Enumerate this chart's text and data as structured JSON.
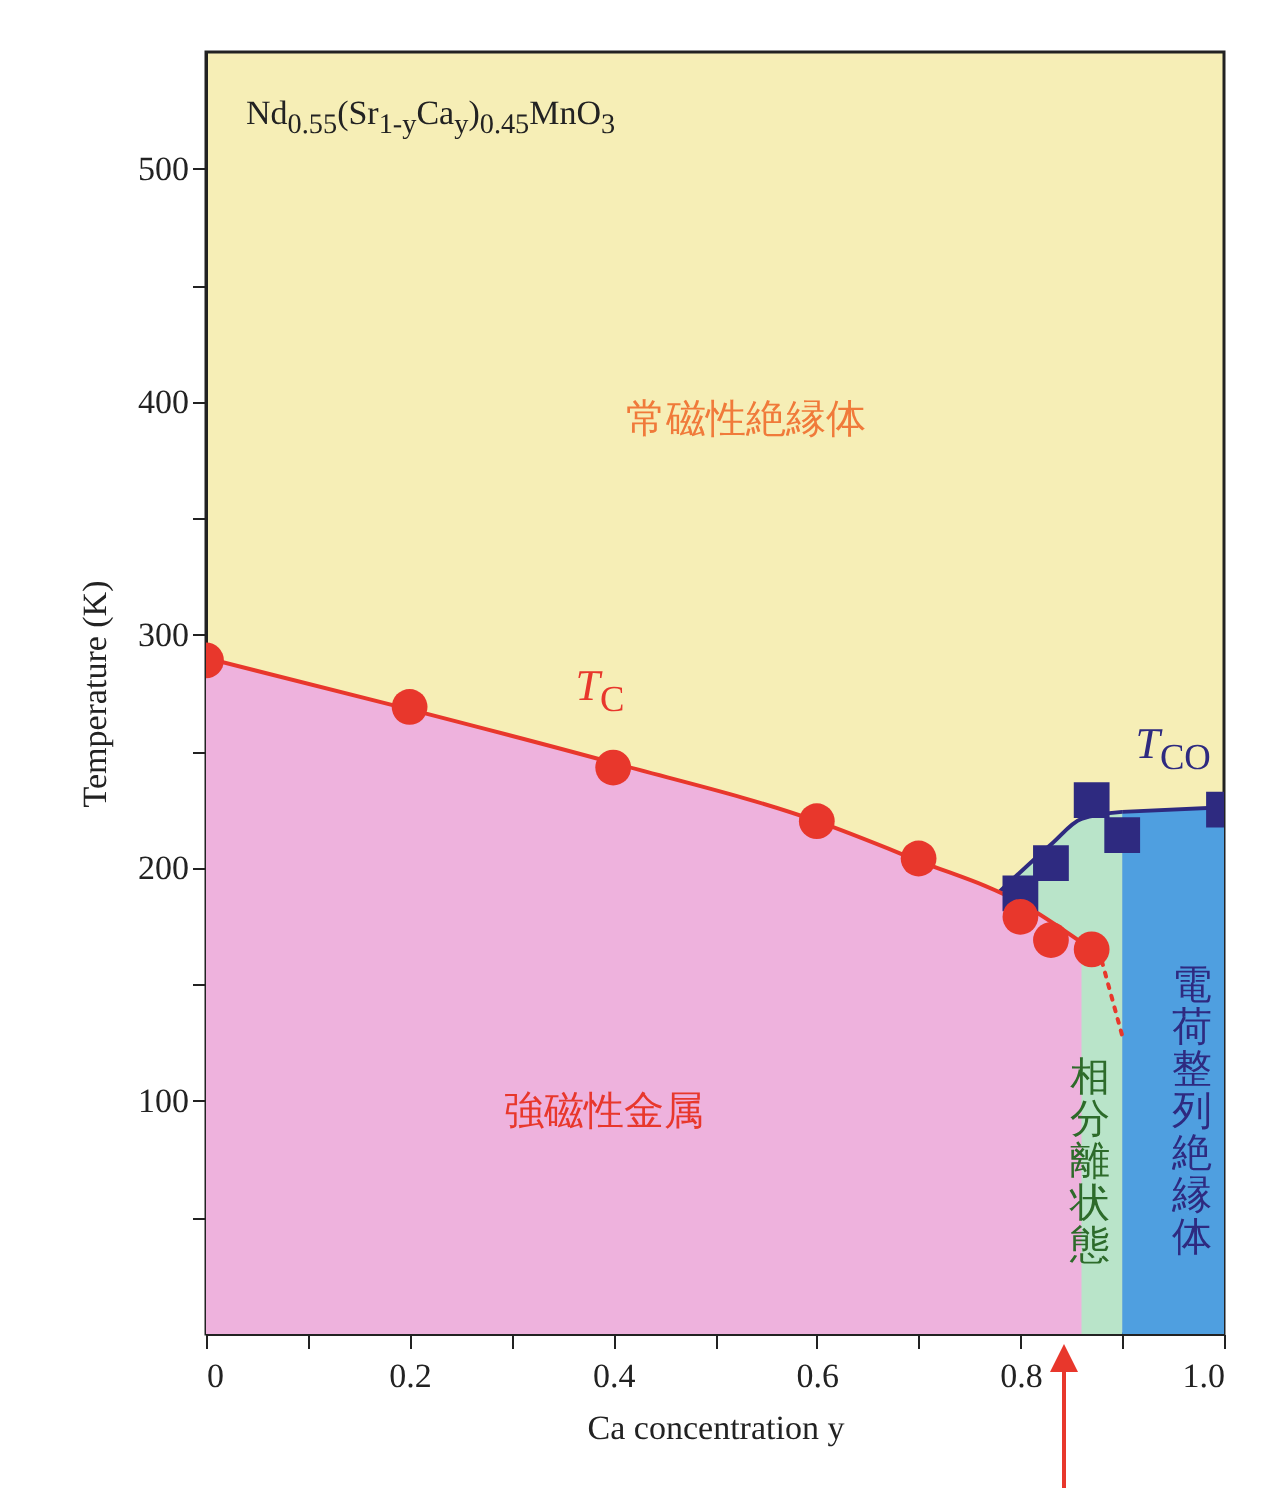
{
  "chart_data": {
    "type": "scatter",
    "xlabel": "Ca concentration y",
    "ylabel": "Temperature (K)",
    "xlim": [
      0,
      1.0
    ],
    "ylim": [
      0,
      550
    ],
    "xticks": [
      0,
      {
        "value": 0.1,
        "label": null
      },
      0.2,
      {
        "value": 0.3,
        "label": null
      },
      0.4,
      {
        "value": 0.5,
        "label": null
      },
      0.6,
      {
        "value": 0.7,
        "label": null
      },
      0.8,
      {
        "value": 0.9,
        "label": null
      },
      {
        "value": 1.0,
        "label": "1.0"
      }
    ],
    "yticks": [
      {
        "value": 50,
        "label": null
      },
      100,
      {
        "value": 150,
        "label": null
      },
      200,
      {
        "value": 250,
        "label": null
      },
      300,
      {
        "value": 350,
        "label": null
      },
      400,
      {
        "value": 450,
        "label": null
      },
      500
    ],
    "grid": false,
    "series": [
      {
        "type": "area",
        "color": "#b9e4c9",
        "x": [
          0.78,
          0.83,
          0.86,
          0.9
        ],
        "values": [
          190,
          210,
          221,
          224
        ]
      },
      {
        "type": "area",
        "color": "#4f9fe0",
        "x": [
          0.9,
          1.0
        ],
        "values": [
          224,
          226
        ]
      },
      {
        "type": "area",
        "color": "#eeb2dd",
        "x": [
          0,
          0.2,
          0.4,
          0.6,
          0.7,
          0.8,
          0.86
        ],
        "values": [
          290,
          268,
          245,
          220,
          203,
          185,
          168
        ]
      },
      {
        "type": "line",
        "color": "#e8372c",
        "marker": "none",
        "line_style": "dotted",
        "x": [
          0.88,
          0.9
        ],
        "values": [
          160,
          128
        ]
      },
      {
        "color": "#2e2a80",
        "marker": "square",
        "x": [
          0.8,
          0.83,
          0.87,
          0.9,
          1.0
        ],
        "values": [
          189,
          202,
          229,
          214,
          225
        ]
      },
      {
        "color": "#e8372c",
        "marker": "circle",
        "x": [
          0,
          0.2,
          0.4,
          0.6,
          0.7,
          0.8,
          0.83,
          0.87
        ],
        "values": [
          289,
          269,
          243,
          220,
          204,
          179,
          169,
          165
        ]
      }
    ],
    "annotations": [
      "Nd$_{0.55}$(Sr$_{1-y}$Ca$_{y}$)$_{0.45}$MnO$_{3}$",
      "常磁性絶縁体",
      "強磁性金属",
      "T$_{C}$",
      {
        "text": "T$_{CO}$",
        "x": 0.95,
        "y": 225
      },
      "相分離状態",
      "電荷整列絶縁体"
    ]
  }
}
